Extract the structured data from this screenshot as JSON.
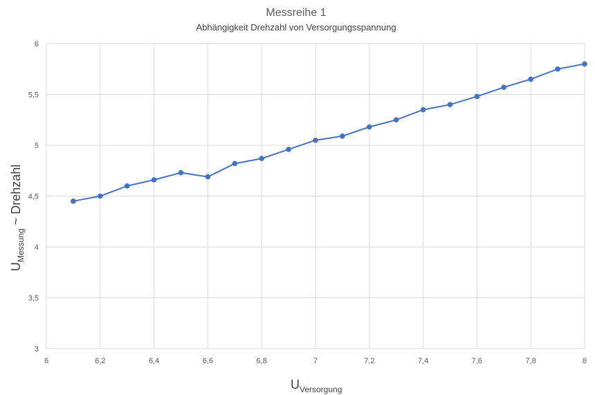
{
  "chart_data": {
    "type": "line",
    "title": "Messreihe 1",
    "subtitle": "Abhängigkeit Drehzahl von Versorgungsspannung",
    "xlabel": {
      "main": "U",
      "sub": "Versorgung"
    },
    "ylabel": {
      "main": "U",
      "sub": "Messung",
      "rest": " ~ Drehzahl"
    },
    "xlim": [
      6,
      8
    ],
    "ylim": [
      3,
      6
    ],
    "xticks": [
      6,
      6.2,
      6.4,
      6.6,
      6.8,
      7,
      7.2,
      7.4,
      7.6,
      7.8,
      8
    ],
    "xtick_labels": [
      "6",
      "6,2",
      "6,4",
      "6,6",
      "6,8",
      "7",
      "7,2",
      "7,4",
      "7,6",
      "7,8",
      "8"
    ],
    "yticks": [
      3,
      3.5,
      4,
      4.5,
      5,
      5.5,
      6
    ],
    "ytick_labels": [
      "3",
      "3,5",
      "4",
      "4,5",
      "5",
      "5,5",
      "6"
    ],
    "grid": true,
    "series": [
      {
        "name": "Messreihe 1",
        "color": "#4472c4",
        "x": [
          6.1,
          6.2,
          6.3,
          6.4,
          6.5,
          6.6,
          6.7,
          6.8,
          6.9,
          7.0,
          7.1,
          7.2,
          7.3,
          7.4,
          7.5,
          7.6,
          7.7,
          7.8,
          7.9,
          8.0
        ],
        "y": [
          4.45,
          4.5,
          4.6,
          4.66,
          4.73,
          4.69,
          4.82,
          4.87,
          4.96,
          5.05,
          5.09,
          5.18,
          5.25,
          5.35,
          5.4,
          5.48,
          5.57,
          5.65,
          5.75,
          5.8
        ]
      }
    ]
  }
}
